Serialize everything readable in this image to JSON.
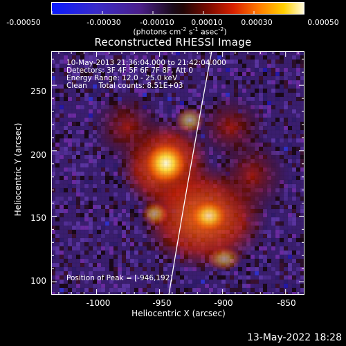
{
  "colorbar": {
    "ticks": [
      "-0.00050",
      "-0.00030",
      "-0.00010",
      "0.00010",
      "0.00030",
      "0.00050"
    ],
    "unit_text": "(photons cm",
    "unit_exp1": "-2",
    "unit_mid": " s",
    "unit_exp2": "-1",
    "unit_end": " asec",
    "unit_exp3": "-2",
    "unit_close": ")"
  },
  "title": "Reconstructed RHESSI Image",
  "annotations": {
    "time": "10-May-2013 21:36:04.000 to 21:42:04.000",
    "detectors": "Detectors: 3F 4F 5F 6F 7F 8F, Att 0",
    "energy": "Energy Range: 12.0 - 25.0 keV",
    "clean": "Clean     Total counts: 8.51E+03",
    "peak": "Position of Peak = [-946,192]"
  },
  "axes": {
    "xlabel": "Heliocentric X (arcsec)",
    "ylabel": "Heliocentric Y (arcsec)",
    "xticks": [
      "-1000",
      "-950",
      "-900",
      "-850"
    ],
    "yticks": [
      "250",
      "200",
      "150",
      "100"
    ]
  },
  "timestamp": "13-May-2022 18:28",
  "colors": {
    "limb_line": "#ffffff"
  },
  "chart_data": {
    "type": "heatmap",
    "title": "Reconstructed RHESSI Image",
    "xlabel": "Heliocentric X (arcsec)",
    "ylabel": "Heliocentric Y (arcsec)",
    "xlim": [
      -1036,
      -835
    ],
    "ylim": [
      90,
      276
    ],
    "peak": {
      "x": -946,
      "y": 192
    }
  }
}
